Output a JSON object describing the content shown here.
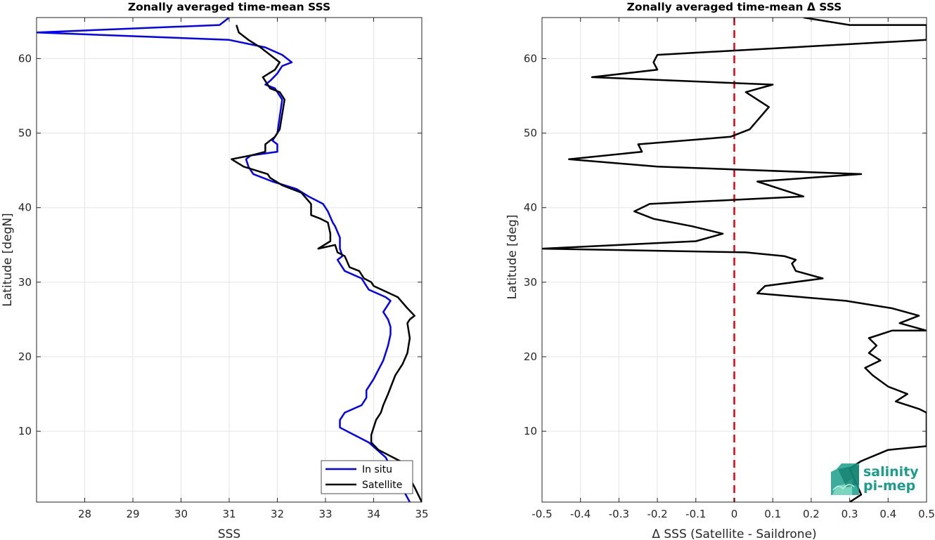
{
  "chart_data": [
    {
      "type": "line",
      "title": "Zonally averaged time-mean SSS",
      "xlabel": "SSS",
      "ylabel": "Latitude [degN]",
      "xlim": [
        27,
        35
      ],
      "ylim": [
        0.5,
        65.5
      ],
      "xticks": [
        28,
        29,
        30,
        31,
        32,
        33,
        34,
        35
      ],
      "yticks": [
        10,
        20,
        30,
        40,
        50,
        60
      ],
      "grid": true,
      "legend": "bottom-right",
      "series": [
        {
          "name": "In situ",
          "color": "#0000ff",
          "x": [
            34.75,
            34.25,
            33.9,
            33.45,
            33.3,
            33.3,
            33.4,
            33.75,
            33.85,
            33.85,
            34.0,
            34.2,
            34.3,
            34.35,
            34.35,
            34.3,
            34.2,
            34.35,
            34.25,
            33.9,
            33.85,
            33.75,
            33.4,
            33.25,
            33.35,
            33.3,
            33.3,
            33.2,
            33.15,
            33.05,
            32.95,
            32.65,
            32.4,
            31.9,
            31.5,
            31.4,
            31.35,
            31.45,
            32.0,
            32.0,
            31.9,
            32.0,
            32.1,
            31.95,
            31.75,
            31.85,
            32.0,
            32.1,
            32.3,
            32.1,
            31.75,
            31.0,
            27.0,
            30.8,
            31.0
          ],
          "y": [
            0.5,
            6.5,
            8.5,
            10.0,
            10.5,
            11.5,
            12.5,
            13.5,
            14.5,
            15.5,
            17.0,
            19.5,
            21.5,
            23.0,
            24.0,
            25.0,
            26.0,
            27.5,
            28.0,
            29.0,
            29.5,
            30.5,
            31.5,
            33.0,
            33.5,
            34.5,
            36.0,
            37.5,
            38.0,
            39.5,
            40.5,
            41.5,
            42.5,
            43.5,
            44.5,
            45.5,
            46.5,
            47.0,
            47.5,
            48.5,
            49.0,
            50.0,
            54.5,
            56.0,
            56.5,
            57.0,
            58.0,
            59.0,
            59.5,
            60.5,
            61.5,
            62.5,
            63.5,
            64.5,
            65.5
          ]
        },
        {
          "name": "Satellite",
          "color": "#000000",
          "x": [
            35.0,
            34.85,
            34.55,
            34.1,
            33.95,
            33.95,
            34.0,
            34.05,
            34.15,
            34.2,
            34.3,
            34.45,
            34.6,
            34.7,
            34.75,
            34.7,
            34.75,
            34.85,
            34.7,
            34.5,
            34.0,
            33.95,
            33.8,
            33.7,
            33.5,
            33.4,
            33.25,
            33.2,
            32.85,
            33.1,
            33.1,
            33.05,
            32.9,
            32.7,
            32.7,
            32.5,
            32.1,
            31.85,
            31.8,
            31.3,
            31.05,
            31.45,
            31.75,
            31.75,
            31.95,
            32.05,
            32.15,
            32.05,
            31.85,
            31.7,
            31.95,
            32.05,
            31.85,
            31.65,
            31.4,
            31.2,
            31.15
          ],
          "y": [
            0.5,
            2.5,
            6.0,
            7.5,
            8.5,
            9.5,
            10.5,
            11.5,
            12.5,
            13.5,
            15.0,
            17.5,
            19.0,
            20.5,
            22.5,
            24.5,
            25.0,
            25.5,
            26.5,
            28.0,
            29.5,
            30.0,
            30.5,
            31.5,
            32.0,
            33.5,
            34.0,
            35.0,
            34.5,
            35.5,
            36.5,
            38.0,
            38.5,
            39.0,
            40.5,
            42.0,
            43.0,
            44.0,
            44.5,
            45.5,
            46.5,
            47.0,
            47.5,
            48.5,
            49.5,
            50.5,
            54.5,
            55.5,
            56.0,
            57.5,
            58.5,
            59.5,
            60.5,
            61.5,
            62.5,
            63.5,
            64.5
          ]
        }
      ]
    },
    {
      "type": "line",
      "title": "Zonally averaged time-mean Δ SSS",
      "xlabel": "Δ SSS (Satellite - Saildrone)",
      "ylabel": "Latitude [deg]",
      "xlim": [
        -0.5,
        0.5
      ],
      "ylim": [
        0.5,
        65.5
      ],
      "xticks": [
        -0.5,
        -0.4,
        -0.3,
        -0.2,
        -0.1,
        0,
        0.1,
        0.2,
        0.3,
        0.4,
        0.5
      ],
      "yticks": [
        10,
        20,
        30,
        40,
        50,
        60
      ],
      "grid": true,
      "reference_line": {
        "x": 0,
        "color": "#e8000b",
        "style": "dashed"
      },
      "series": [
        {
          "color": "#000000",
          "x": [
            0.3,
            0.33,
            0.3,
            0.33,
            0.4,
            0.5,
            0.5,
            0.48,
            0.42,
            0.45,
            0.4,
            0.36,
            0.34,
            0.38,
            0.35,
            0.37,
            0.35,
            0.41,
            0.5,
            0.43,
            0.48,
            0.41,
            0.29,
            0.06,
            0.08,
            0.23,
            0.16,
            0.15,
            0.16,
            0.13,
            0.03,
            -0.5,
            -0.1,
            -0.03,
            -0.11,
            -0.21,
            -0.26,
            -0.22,
            0.18,
            0.06,
            0.33,
            -0.2,
            -0.43,
            -0.24,
            -0.25,
            -0.01,
            0.04,
            0.09,
            0.03,
            0.1,
            -0.37,
            -0.2,
            -0.21,
            -0.2,
            0.5,
            0.5,
            0.3,
            0.18
          ],
          "y": [
            0.5,
            1.5,
            5.0,
            6.0,
            7.5,
            8.0,
            12.5,
            13.0,
            14.0,
            15.0,
            16.0,
            17.5,
            18.5,
            19.5,
            20.5,
            21.5,
            22.5,
            23.5,
            23.5,
            24.5,
            25.5,
            26.5,
            27.5,
            28.5,
            29.5,
            30.5,
            31.5,
            32.5,
            33.0,
            33.5,
            34.0,
            34.5,
            35.5,
            36.5,
            37.5,
            38.5,
            39.5,
            40.5,
            41.5,
            43.5,
            44.5,
            45.5,
            46.5,
            47.5,
            48.5,
            49.5,
            50.5,
            53.5,
            55.5,
            56.5,
            57.5,
            58.5,
            59.5,
            60.5,
            62.5,
            64.5,
            64.5,
            65.5
          ]
        }
      ]
    }
  ],
  "legend": {
    "entries": [
      "In situ",
      "Satellite"
    ]
  },
  "logo": {
    "line1": "salinity",
    "line2": "pi-mep"
  }
}
